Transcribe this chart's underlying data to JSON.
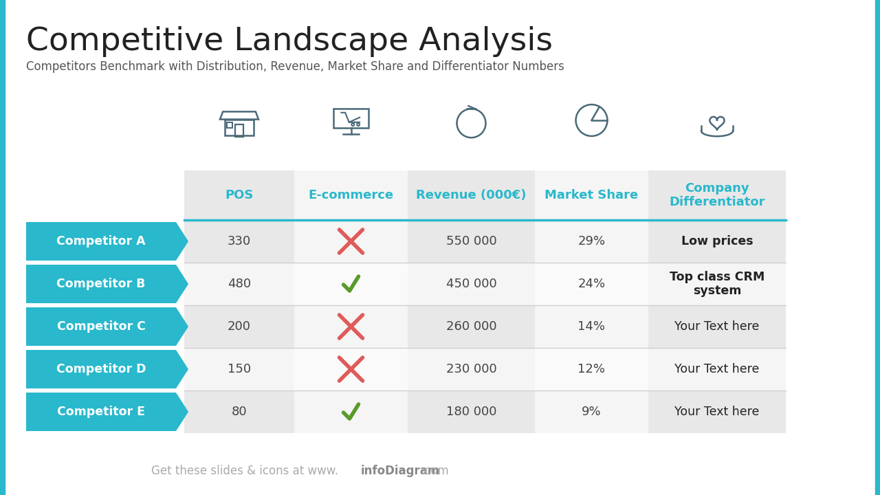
{
  "title": "Competitive Landscape Analysis",
  "subtitle": "Competitors Benchmark with Distribution, Revenue, Market Share and Differentiator Numbers",
  "bg_color": "#ffffff",
  "accent_color": "#29b8cc",
  "competitor_bg": "#29b8cc",
  "competitor_text": "#ffffff",
  "columns": [
    "POS",
    "E-commerce",
    "Revenue (000€)",
    "Market Share",
    "Company\nDifferentiator"
  ],
  "col_header_colors": [
    "#29b8cc",
    "#29b8cc",
    "#29b8cc",
    "#29b8cc",
    "#29b8cc"
  ],
  "col_bg_colors": [
    "#e8e8e8",
    "#f5f5f5",
    "#e8e8e8",
    "#f5f5f5",
    "#e8e8e8"
  ],
  "competitors": [
    "Competitor A",
    "Competitor B",
    "Competitor C",
    "Competitor D",
    "Competitor E"
  ],
  "pos_values": [
    "330",
    "480",
    "200",
    "150",
    "80"
  ],
  "ecommerce": [
    false,
    true,
    false,
    false,
    true
  ],
  "revenue": [
    "550 000",
    "450 000",
    "260 000",
    "230 000",
    "180 000"
  ],
  "market_share": [
    "29%",
    "24%",
    "14%",
    "12%",
    "9%"
  ],
  "differentiator": [
    "Low prices",
    "Top class CRM\nsystem",
    "Your Text here",
    "Your Text here",
    "Your Text here"
  ],
  "diff_bold": [
    true,
    true,
    false,
    false,
    false
  ],
  "left_bar_color": "#29b8cc",
  "right_bar_color": "#29b8cc",
  "icon_color": "#4a6878",
  "check_color": "#5a9a2a",
  "cross_color": "#e05a5a",
  "divider_color": "#cccccc",
  "teal_line_color": "#29b8cc",
  "footer_normal_color": "#aaaaaa",
  "footer_bold_color": "#888888",
  "title_color": "#222222",
  "subtitle_color": "#555555",
  "cell_text_color": "#444444"
}
